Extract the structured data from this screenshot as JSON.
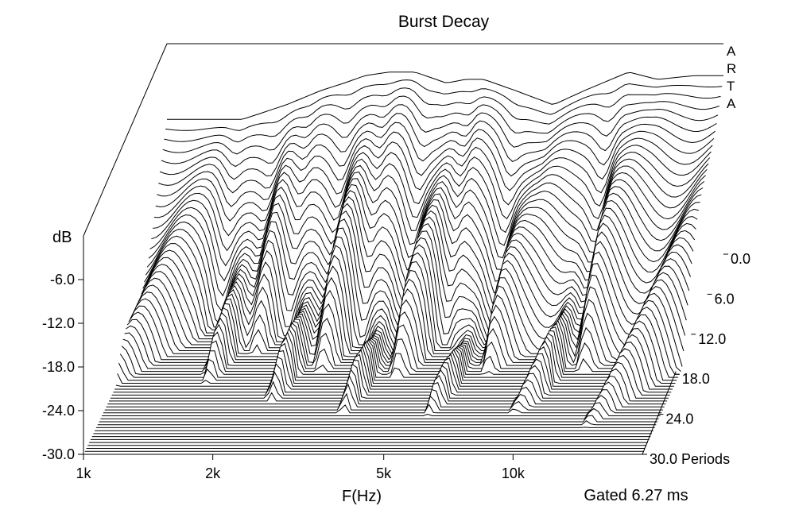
{
  "chart_data": {
    "type": "waterfall",
    "title": "Burst Decay",
    "brand": [
      "A",
      "R",
      "T",
      "A"
    ],
    "ylabel": "dB",
    "xlabel": "F(Hz)",
    "zlabel": "Periods",
    "note": "Gated 6.27 ms",
    "y_ticks": [
      {
        "value": -6,
        "label": "-6.0"
      },
      {
        "value": -12,
        "label": "-12.0"
      },
      {
        "value": -18,
        "label": "-18.0"
      },
      {
        "value": -24,
        "label": "-24.0"
      },
      {
        "value": -30,
        "label": "-30.0"
      }
    ],
    "ylim": [
      -30,
      0
    ],
    "x_ticks": [
      {
        "value": 1000,
        "label": "1k"
      },
      {
        "value": 2000,
        "label": "2k"
      },
      {
        "value": 5000,
        "label": "5k"
      },
      {
        "value": 10000,
        "label": "10k"
      }
    ],
    "xlim": [
      1000,
      20000
    ],
    "z_ticks": [
      {
        "value": 0,
        "label": "0.0"
      },
      {
        "value": 6,
        "label": "6.0"
      },
      {
        "value": 12,
        "label": "12.0"
      },
      {
        "value": 18,
        "label": "18.0"
      },
      {
        "value": 24,
        "label": "24.0"
      },
      {
        "value": 30,
        "label": "30.0 Periods"
      }
    ],
    "zlim": [
      0,
      30
    ],
    "slices": 60,
    "surface": {
      "freq_hz": [
        1500,
        1900,
        2300,
        2600,
        2900,
        3300,
        3800,
        4500,
        5000,
        5500,
        6500,
        8000,
        9500,
        12000,
        14000,
        17000,
        20000
      ],
      "first_slice_db": [
        -8,
        -6,
        -4,
        -3,
        -2,
        -1.5,
        -1.5,
        -3,
        -2.5,
        -2.5,
        -4,
        -6,
        -4,
        -1.5,
        -2.5,
        -2,
        -2
      ]
    }
  }
}
